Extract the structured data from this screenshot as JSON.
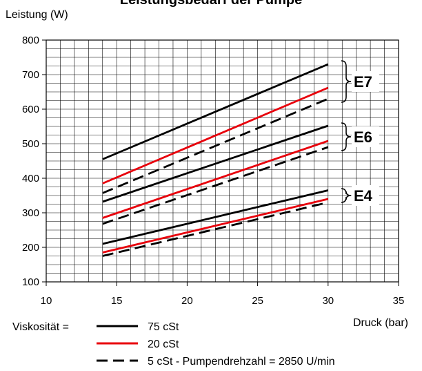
{
  "chart_data": {
    "type": "line",
    "title": "Leistungsbedarf der Pumpe",
    "ylabel": "Leistung  (W)",
    "xlabel": "Druck (bar)",
    "xlim": [
      10,
      35
    ],
    "ylim": [
      100,
      800
    ],
    "x_ticks": [
      "10",
      "15",
      "20",
      "25",
      "30",
      "35"
    ],
    "y_ticks": [
      "100",
      "200",
      "300",
      "400",
      "500",
      "600",
      "700",
      "800"
    ],
    "grid": true,
    "groups": [
      {
        "label": "E7",
        "y_span": [
          620,
          740
        ]
      },
      {
        "label": "E6",
        "y_span": [
          480,
          560
        ]
      },
      {
        "label": "E4",
        "y_span": [
          330,
          370
        ]
      }
    ],
    "series": [
      {
        "group": "E7",
        "viscosity": "75 cSt",
        "color": "#000000",
        "dash": "solid",
        "x": [
          14,
          30
        ],
        "y": [
          455,
          730
        ]
      },
      {
        "group": "E7",
        "viscosity": "20 cSt",
        "color": "#e8000b",
        "dash": "solid",
        "x": [
          14,
          30
        ],
        "y": [
          385,
          662
        ]
      },
      {
        "group": "E7",
        "viscosity": "5 cSt",
        "color": "#000000",
        "dash": "dashed",
        "x": [
          14,
          30
        ],
        "y": [
          357,
          630
        ]
      },
      {
        "group": "E6",
        "viscosity": "75 cSt",
        "color": "#000000",
        "dash": "solid",
        "x": [
          14,
          30
        ],
        "y": [
          332,
          552
        ]
      },
      {
        "group": "E6",
        "viscosity": "20 cSt",
        "color": "#e8000b",
        "dash": "solid",
        "x": [
          14,
          30
        ],
        "y": [
          285,
          508
        ]
      },
      {
        "group": "E6",
        "viscosity": "5 cSt",
        "color": "#000000",
        "dash": "dashed",
        "x": [
          14,
          30
        ],
        "y": [
          268,
          490
        ]
      },
      {
        "group": "E4",
        "viscosity": "75 cSt",
        "color": "#000000",
        "dash": "solid",
        "x": [
          14,
          30
        ],
        "y": [
          210,
          365
        ]
      },
      {
        "group": "E4",
        "viscosity": "20 cSt",
        "color": "#e8000b",
        "dash": "solid",
        "x": [
          14,
          30
        ],
        "y": [
          185,
          340
        ]
      },
      {
        "group": "E4",
        "viscosity": "5 cSt",
        "color": "#000000",
        "dash": "dashed",
        "x": [
          14,
          30
        ],
        "y": [
          175,
          330
        ]
      }
    ],
    "legend": {
      "prefix": "Viskosität =",
      "entries": [
        {
          "label": "75  cSt",
          "color": "#000000",
          "dash": "solid"
        },
        {
          "label": "20  cSt",
          "color": "#e8000b",
          "dash": "solid"
        },
        {
          "label": "5  cSt  - Pumpendrehzahl = 2850 U/min",
          "color": "#000000",
          "dash": "dashed"
        }
      ]
    }
  }
}
